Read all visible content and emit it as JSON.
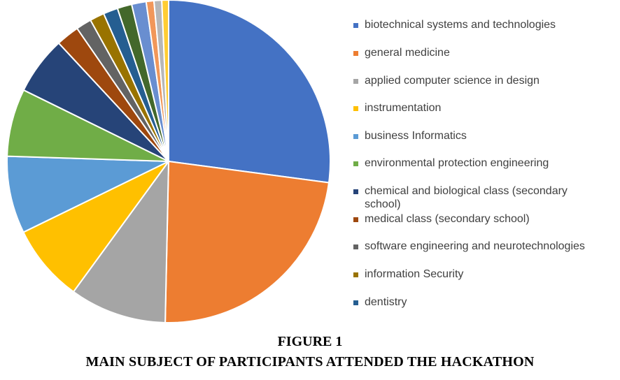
{
  "chart_data": {
    "type": "pie",
    "categories": [
      "biotechnical systems and technologies",
      "general medicine",
      "applied computer science in design",
      "instrumentation",
      "business Informatics",
      "environmental protection engineering",
      "chemical and biological class (secondary school)",
      "medical class (secondary school)",
      "software engineering and neurotechnologies",
      "information Security",
      "dentistry",
      "",
      "",
      "",
      "",
      ""
    ],
    "values": [
      28,
      24,
      10,
      8,
      8,
      7,
      6,
      2.4,
      1.6,
      1.5,
      1.5,
      1.5,
      1.5,
      0.8,
      0.8,
      0.7
    ],
    "colors": [
      "#4472C4",
      "#ED7D31",
      "#A5A5A5",
      "#FFC000",
      "#5B9BD5",
      "#70AD47",
      "#264478",
      "#9E480E",
      "#636363",
      "#997300",
      "#255E91",
      "#43682B",
      "#698ED0",
      "#F1975A",
      "#B7B7B7",
      "#FFCD33"
    ],
    "legend_position": "right",
    "start_angle": "12 o'clock",
    "direction": "clockwise"
  },
  "legend": {
    "items": [
      {
        "label": "biotechnical systems and technologies",
        "color": "#4472C4"
      },
      {
        "label": "general medicine",
        "color": "#ED7D31"
      },
      {
        "label": "applied computer science in design",
        "color": "#A5A5A5"
      },
      {
        "label": "instrumentation",
        "color": "#FFC000"
      },
      {
        "label": "business Informatics",
        "color": "#5B9BD5"
      },
      {
        "label": "environmental protection engineering",
        "color": "#70AD47"
      },
      {
        "label": "chemical and biological class (secondary school)",
        "color": "#264478"
      },
      {
        "label": "medical class (secondary school)",
        "color": "#9E480E"
      },
      {
        "label": "software engineering and neurotechnologies",
        "color": "#636363"
      },
      {
        "label": "information Security",
        "color": "#997300"
      },
      {
        "label": "dentistry",
        "color": "#255E91"
      }
    ]
  },
  "caption": {
    "figure": "FIGURE 1",
    "title": "MAIN SUBJECT OF PARTICIPANTS ATTENDED THE HACKATHON"
  }
}
